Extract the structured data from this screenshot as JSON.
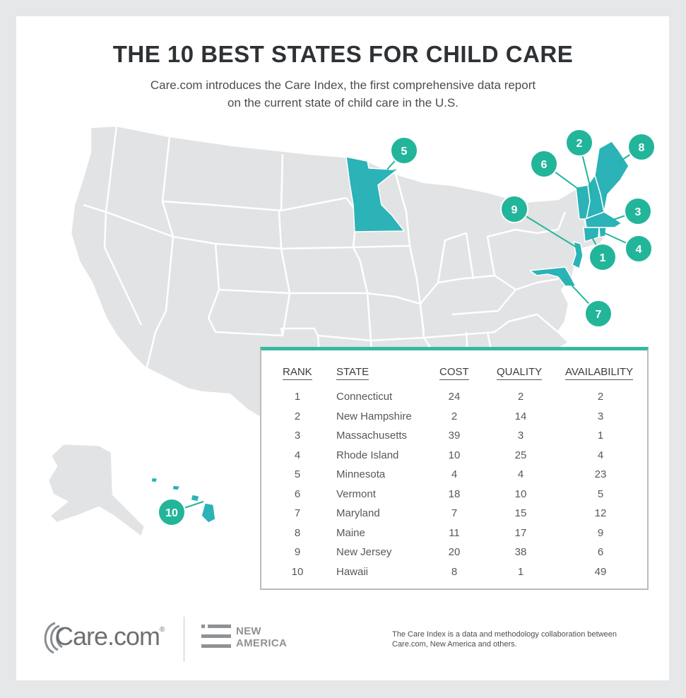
{
  "header": {
    "title": "THE 10 BEST STATES FOR CHILD CARE",
    "subtitle_line1": "Care.com introduces the Care Index, the first comprehensive data report",
    "subtitle_line2": "on the current state of child care in the U.S."
  },
  "colors": {
    "highlight_state": "#2bb3b7",
    "base_state": "#e2e3e4",
    "marker": "#22b59a",
    "table_accent": "#35b9a5"
  },
  "markers": [
    {
      "label": "1",
      "state": "Connecticut"
    },
    {
      "label": "2",
      "state": "New Hampshire"
    },
    {
      "label": "3",
      "state": "Massachusetts"
    },
    {
      "label": "4",
      "state": "Rhode Island"
    },
    {
      "label": "5",
      "state": "Minnesota"
    },
    {
      "label": "6",
      "state": "Vermont"
    },
    {
      "label": "7",
      "state": "Maryland"
    },
    {
      "label": "8",
      "state": "Maine"
    },
    {
      "label": "9",
      "state": "New Jersey"
    },
    {
      "label": "10",
      "state": "Hawaii"
    }
  ],
  "table": {
    "headers": {
      "rank": "RANK",
      "state": "STATE",
      "cost": "COST",
      "quality": "QUALITY",
      "availability": "AVAILABILITY"
    },
    "rows": [
      {
        "rank": "1",
        "state": "Connecticut",
        "cost": "24",
        "quality": "2",
        "availability": "2"
      },
      {
        "rank": "2",
        "state": "New Hampshire",
        "cost": "2",
        "quality": "14",
        "availability": "3"
      },
      {
        "rank": "3",
        "state": "Massachusetts",
        "cost": "39",
        "quality": "3",
        "availability": "1"
      },
      {
        "rank": "4",
        "state": "Rhode Island",
        "cost": "10",
        "quality": "25",
        "availability": "4"
      },
      {
        "rank": "5",
        "state": "Minnesota",
        "cost": "4",
        "quality": "4",
        "availability": "23"
      },
      {
        "rank": "6",
        "state": "Vermont",
        "cost": "18",
        "quality": "10",
        "availability": "5"
      },
      {
        "rank": "7",
        "state": "Maryland",
        "cost": "7",
        "quality": "15",
        "availability": "12"
      },
      {
        "rank": "8",
        "state": "Maine",
        "cost": "11",
        "quality": "17",
        "availability": "9"
      },
      {
        "rank": "9",
        "state": "New Jersey",
        "cost": "20",
        "quality": "38",
        "availability": "6"
      },
      {
        "rank": "10",
        "state": "Hawaii",
        "cost": "8",
        "quality": "1",
        "availability": "49"
      }
    ]
  },
  "footer": {
    "care_logo": "Care.com",
    "care_logo_mark": "®",
    "partner_line1": "NEW",
    "partner_line2": "AMERICA",
    "note": "The Care Index is a data and methodology collaboration between Care.com, New America and others."
  }
}
